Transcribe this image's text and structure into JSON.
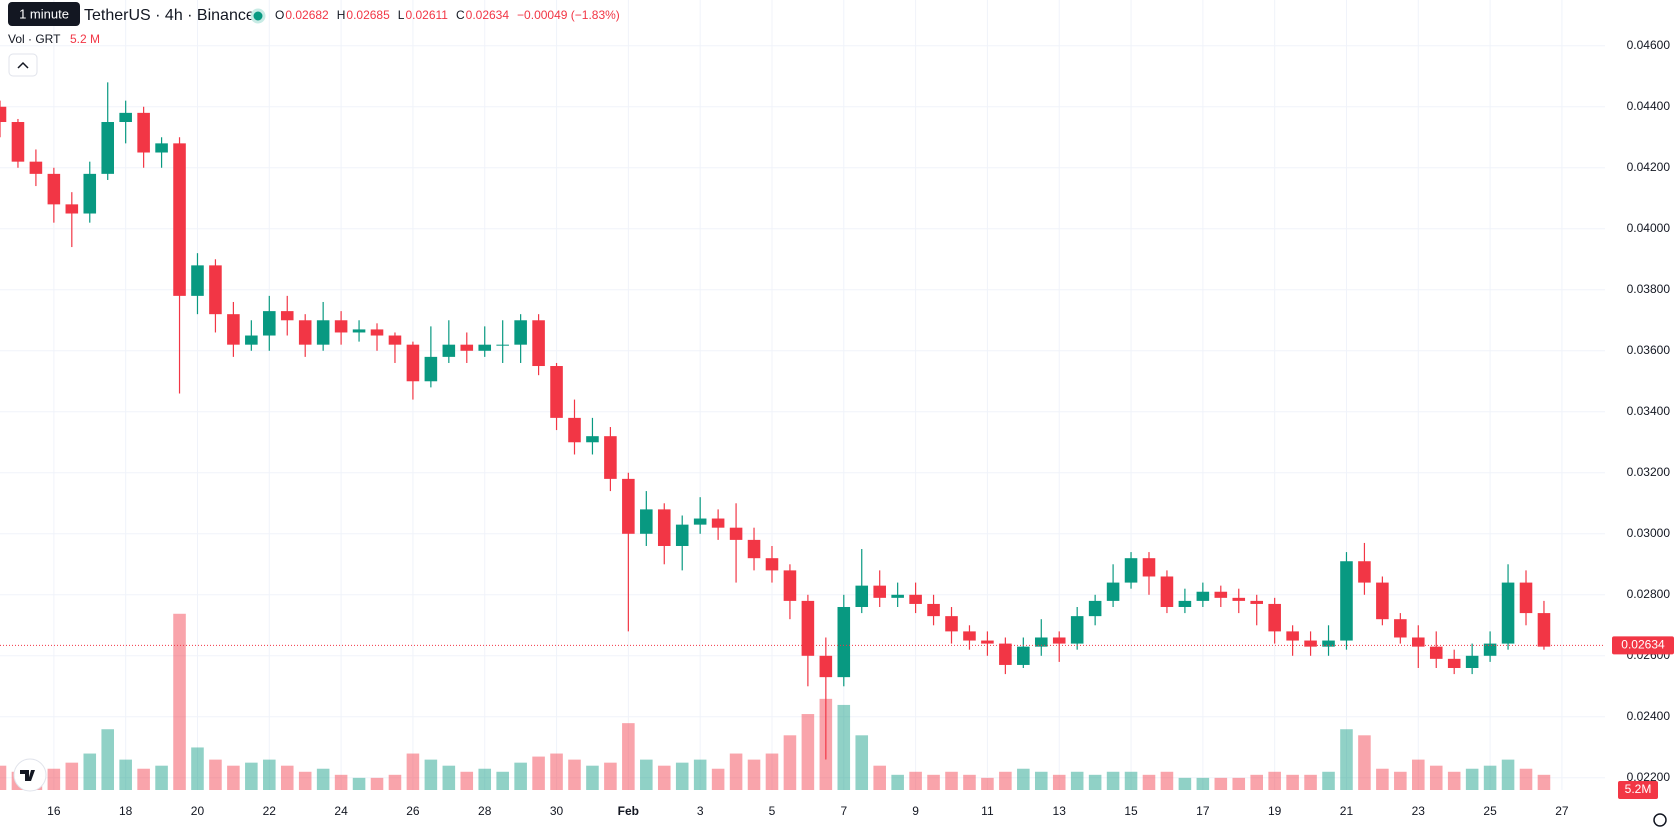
{
  "chart_data": {
    "type": "candlestick",
    "title": "TetherUS · 4h · Binance",
    "tooltip": "1 minute",
    "legend": [
      {
        "label": "O",
        "value": 0.02682
      },
      {
        "label": "H",
        "value": 0.02685
      },
      {
        "label": "L",
        "value": 0.02611
      },
      {
        "label": "C",
        "value": 0.02634
      }
    ],
    "change": "−0.00049 (−1.83%)",
    "volume_title": "Vol · GRT",
    "volume_legend": "5.2 M",
    "volume_badge": "5.2M",
    "last_price": 0.02634,
    "up_color": "#089981",
    "down_color": "#f23645",
    "grid": true,
    "xlim": [
      14.5,
      59.2
    ],
    "ylim": [
      0.0216,
      0.0475
    ],
    "y2lim": [
      0,
      260
    ],
    "xticks": [
      16,
      18,
      20,
      22,
      24,
      26,
      28,
      30,
      {
        "value": 32,
        "label": "Feb"
      },
      {
        "value": 34,
        "label": "3"
      },
      {
        "value": 36,
        "label": "5"
      },
      {
        "value": 38,
        "label": "7"
      },
      {
        "value": 40,
        "label": "9"
      },
      {
        "value": 42,
        "label": "11"
      },
      {
        "value": 44,
        "label": "13"
      },
      {
        "value": 46,
        "label": "15"
      },
      {
        "value": 48,
        "label": "17"
      },
      {
        "value": 50,
        "label": "19"
      },
      {
        "value": 52,
        "label": "21"
      },
      {
        "value": 54,
        "label": "23"
      },
      {
        "value": 56,
        "label": "25"
      },
      {
        "value": 58,
        "label": "27"
      }
    ],
    "yticks": [
      {
        "value": 0.022,
        "label": "0.02200"
      },
      {
        "value": 0.024,
        "label": "0.02400"
      },
      {
        "value": 0.026,
        "label": "0.02600"
      },
      {
        "value": 0.028,
        "label": "0.02800"
      },
      {
        "value": 0.03,
        "label": "0.03000"
      },
      {
        "value": 0.032,
        "label": "0.03200"
      },
      {
        "value": 0.034,
        "label": "0.03400"
      },
      {
        "value": 0.036,
        "label": "0.03600"
      },
      {
        "value": 0.038,
        "label": "0.03800"
      },
      {
        "value": 0.04,
        "label": "0.04000"
      },
      {
        "value": 0.042,
        "label": "0.04200"
      },
      {
        "value": 0.044,
        "label": "0.04400"
      },
      {
        "value": 0.046,
        "label": "0.04600"
      }
    ],
    "x": [
      14.5,
      15,
      15.5,
      16,
      16.5,
      17,
      17.5,
      18,
      18.5,
      19,
      19.5,
      20,
      20.5,
      21,
      21.5,
      22,
      22.5,
      23,
      23.5,
      24,
      24.5,
      25,
      25.5,
      26,
      26.5,
      27,
      27.5,
      28,
      28.5,
      29,
      29.5,
      30,
      30.5,
      31,
      31.5,
      32,
      32.5,
      33,
      33.5,
      34,
      34.5,
      35,
      35.5,
      36,
      36.5,
      37,
      37.5,
      38,
      38.5,
      39,
      39.5,
      40,
      40.5,
      41,
      41.5,
      42,
      42.5,
      43,
      43.5,
      44,
      44.5,
      45,
      45.5,
      46,
      46.5,
      47,
      47.5,
      48,
      48.5,
      49,
      49.5,
      50,
      50.5,
      51,
      51.5,
      52,
      52.5,
      53,
      53.5,
      54,
      54.5,
      55,
      55.5,
      56,
      56.5,
      57,
      57.5
    ],
    "ohlc": [
      [
        0.044,
        0.0442,
        0.043,
        0.0435
      ],
      [
        0.0435,
        0.0436,
        0.042,
        0.0422
      ],
      [
        0.0422,
        0.0426,
        0.0414,
        0.0418
      ],
      [
        0.0418,
        0.042,
        0.0402,
        0.0408
      ],
      [
        0.0408,
        0.0412,
        0.0394,
        0.0405
      ],
      [
        0.0405,
        0.0422,
        0.0402,
        0.0418
      ],
      [
        0.0418,
        0.0448,
        0.0416,
        0.0435
      ],
      [
        0.0435,
        0.0442,
        0.0428,
        0.0438
      ],
      [
        0.0438,
        0.044,
        0.042,
        0.0425
      ],
      [
        0.0425,
        0.043,
        0.042,
        0.0428
      ],
      [
        0.0428,
        0.043,
        0.0346,
        0.0378
      ],
      [
        0.0378,
        0.0392,
        0.0372,
        0.0388
      ],
      [
        0.0388,
        0.039,
        0.0366,
        0.0372
      ],
      [
        0.0372,
        0.0376,
        0.0358,
        0.0362
      ],
      [
        0.0362,
        0.037,
        0.036,
        0.0365
      ],
      [
        0.0365,
        0.0378,
        0.036,
        0.0373
      ],
      [
        0.0373,
        0.0378,
        0.0365,
        0.037
      ],
      [
        0.037,
        0.0372,
        0.0358,
        0.0362
      ],
      [
        0.0362,
        0.0376,
        0.036,
        0.037
      ],
      [
        0.037,
        0.0373,
        0.0362,
        0.0366
      ],
      [
        0.0366,
        0.037,
        0.0363,
        0.0367
      ],
      [
        0.0367,
        0.0369,
        0.036,
        0.0365
      ],
      [
        0.0365,
        0.0366,
        0.0356,
        0.0362
      ],
      [
        0.0362,
        0.0363,
        0.0344,
        0.035
      ],
      [
        0.035,
        0.0368,
        0.0348,
        0.0358
      ],
      [
        0.0358,
        0.037,
        0.0356,
        0.0362
      ],
      [
        0.0362,
        0.0366,
        0.0356,
        0.036
      ],
      [
        0.036,
        0.0368,
        0.0358,
        0.0362
      ],
      [
        0.0362,
        0.037,
        0.0356,
        0.0362
      ],
      [
        0.0362,
        0.0372,
        0.0356,
        0.037
      ],
      [
        0.037,
        0.0372,
        0.0352,
        0.0355
      ],
      [
        0.0355,
        0.0356,
        0.0334,
        0.0338
      ],
      [
        0.0338,
        0.0344,
        0.0326,
        0.033
      ],
      [
        0.033,
        0.0338,
        0.0326,
        0.0332
      ],
      [
        0.0332,
        0.0335,
        0.0314,
        0.0318
      ],
      [
        0.0318,
        0.032,
        0.0268,
        0.03
      ],
      [
        0.03,
        0.0314,
        0.0296,
        0.0308
      ],
      [
        0.0308,
        0.031,
        0.029,
        0.0296
      ],
      [
        0.0296,
        0.0306,
        0.0288,
        0.0303
      ],
      [
        0.0303,
        0.0312,
        0.03,
        0.0305
      ],
      [
        0.0305,
        0.0308,
        0.0298,
        0.0302
      ],
      [
        0.0302,
        0.031,
        0.0284,
        0.0298
      ],
      [
        0.0298,
        0.0302,
        0.0288,
        0.0292
      ],
      [
        0.0292,
        0.0296,
        0.0284,
        0.0288
      ],
      [
        0.0288,
        0.029,
        0.0272,
        0.0278
      ],
      [
        0.0278,
        0.028,
        0.025,
        0.026
      ],
      [
        0.026,
        0.0266,
        0.0226,
        0.0253
      ],
      [
        0.0253,
        0.028,
        0.025,
        0.0276
      ],
      [
        0.0276,
        0.0295,
        0.0274,
        0.0283
      ],
      [
        0.0283,
        0.0288,
        0.0276,
        0.0279
      ],
      [
        0.0279,
        0.0284,
        0.0276,
        0.028
      ],
      [
        0.028,
        0.0284,
        0.0274,
        0.0277
      ],
      [
        0.0277,
        0.028,
        0.027,
        0.0273
      ],
      [
        0.0273,
        0.0276,
        0.0264,
        0.0268
      ],
      [
        0.0268,
        0.027,
        0.0262,
        0.0265
      ],
      [
        0.0265,
        0.0268,
        0.026,
        0.0264
      ],
      [
        0.0264,
        0.0266,
        0.0254,
        0.0257
      ],
      [
        0.0257,
        0.0266,
        0.0256,
        0.0263
      ],
      [
        0.0263,
        0.0272,
        0.026,
        0.0266
      ],
      [
        0.0266,
        0.0268,
        0.0258,
        0.0264
      ],
      [
        0.0264,
        0.0276,
        0.0262,
        0.0273
      ],
      [
        0.0273,
        0.028,
        0.027,
        0.0278
      ],
      [
        0.0278,
        0.029,
        0.0276,
        0.0284
      ],
      [
        0.0284,
        0.0294,
        0.0282,
        0.0292
      ],
      [
        0.0292,
        0.0294,
        0.028,
        0.0286
      ],
      [
        0.0286,
        0.0288,
        0.0274,
        0.0276
      ],
      [
        0.0276,
        0.0282,
        0.0274,
        0.0278
      ],
      [
        0.0278,
        0.0284,
        0.0276,
        0.0281
      ],
      [
        0.0281,
        0.0283,
        0.0276,
        0.0279
      ],
      [
        0.0279,
        0.0282,
        0.0274,
        0.0278
      ],
      [
        0.0278,
        0.028,
        0.027,
        0.0277
      ],
      [
        0.0277,
        0.0279,
        0.0264,
        0.0268
      ],
      [
        0.0268,
        0.027,
        0.026,
        0.0265
      ],
      [
        0.0265,
        0.0268,
        0.026,
        0.0263
      ],
      [
        0.0263,
        0.027,
        0.026,
        0.0265
      ],
      [
        0.0265,
        0.0294,
        0.0262,
        0.0291
      ],
      [
        0.0291,
        0.0297,
        0.028,
        0.0284
      ],
      [
        0.0284,
        0.0286,
        0.027,
        0.0272
      ],
      [
        0.0272,
        0.0274,
        0.0264,
        0.0266
      ],
      [
        0.0266,
        0.027,
        0.0256,
        0.0263
      ],
      [
        0.0263,
        0.0268,
        0.0256,
        0.0259
      ],
      [
        0.0259,
        0.0262,
        0.0254,
        0.0256
      ],
      [
        0.0256,
        0.0264,
        0.0254,
        0.026
      ],
      [
        0.026,
        0.0268,
        0.0258,
        0.0264
      ],
      [
        0.0264,
        0.029,
        0.0262,
        0.0284
      ],
      [
        0.0284,
        0.0288,
        0.027,
        0.0274
      ],
      [
        0.0274,
        0.0278,
        0.0262,
        0.0263
      ]
    ],
    "volume": [
      8,
      6,
      5,
      7,
      9,
      12,
      20,
      10,
      7,
      8,
      58,
      14,
      10,
      8,
      9,
      10,
      8,
      6,
      7,
      5,
      4,
      4,
      5,
      12,
      10,
      8,
      6,
      7,
      6,
      9,
      11,
      12,
      10,
      8,
      9,
      22,
      10,
      8,
      9,
      10,
      7,
      12,
      10,
      12,
      18,
      25,
      30,
      28,
      18,
      8,
      5,
      6,
      5,
      6,
      5,
      4,
      6,
      7,
      6,
      5,
      6,
      5,
      6,
      6,
      5,
      6,
      4,
      4,
      4,
      4,
      5,
      6,
      5,
      5,
      6,
      20,
      18,
      7,
      6,
      10,
      8,
      6,
      7,
      8,
      10,
      7,
      5
    ]
  }
}
